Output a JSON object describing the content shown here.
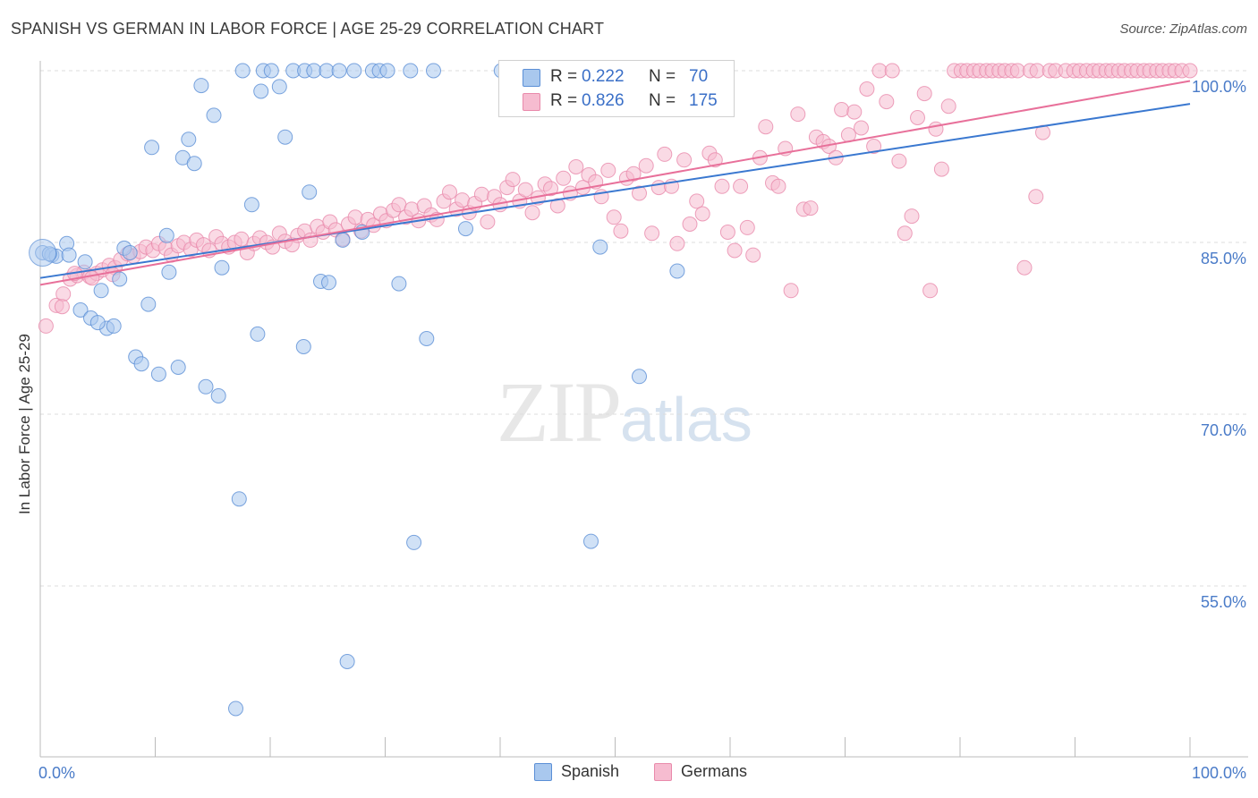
{
  "title": "SPANISH VS GERMAN IN LABOR FORCE | AGE 25-29 CORRELATION CHART",
  "source": "Source: ZipAtlas.com",
  "watermark": {
    "zip": "ZIP",
    "atlas": "atlas"
  },
  "legend_box": {
    "rows": [
      {
        "r_label": "R =",
        "r_value": "0.222",
        "n_label": "N =",
        "n_value": "70"
      },
      {
        "r_label": "R =",
        "r_value": "0.826",
        "n_label": "N =",
        "n_value": "175"
      }
    ]
  },
  "colors": {
    "spanish_fill": "#a9c8ee",
    "spanish_stroke": "#5b8fd6",
    "spanish_line": "#3a78d0",
    "german_fill": "#f6bcd0",
    "german_stroke": "#e98aab",
    "german_line": "#e8709a",
    "tick_label": "#4a7bc8",
    "grid": "#dcdcdc"
  },
  "chart_data": {
    "type": "scatter",
    "title": "SPANISH VS GERMAN IN LABOR FORCE | AGE 25-29 CORRELATION CHART",
    "ylabel": "In Labor Force | Age 25-29",
    "xlabel": "",
    "xlim": [
      0,
      100
    ],
    "ylim": [
      40,
      102
    ],
    "x_tick_labels": [
      "0.0%",
      "100.0%"
    ],
    "y_ticks": [
      55,
      70,
      85,
      100
    ],
    "y_tick_labels": [
      "55.0%",
      "70.0%",
      "85.0%",
      "100.0%"
    ],
    "grid": true,
    "legend_position": "top-center",
    "series": [
      {
        "name": "Spanish",
        "R": 0.222,
        "N": 70,
        "trend": {
          "x": [
            0,
            100
          ],
          "y": [
            81.9,
            97.1
          ]
        },
        "points": [
          [
            0.2,
            84.1
          ],
          [
            1.0,
            83.9
          ],
          [
            1.4,
            83.8
          ],
          [
            2.3,
            84.9
          ],
          [
            3.5,
            79.1
          ],
          [
            3.9,
            83.3
          ],
          [
            4.4,
            78.4
          ],
          [
            5.3,
            80.8
          ],
          [
            5.8,
            77.5
          ],
          [
            6.4,
            77.7
          ],
          [
            6.9,
            81.8
          ],
          [
            7.3,
            84.5
          ],
          [
            7.8,
            84.1
          ],
          [
            8.3,
            75.0
          ],
          [
            8.8,
            74.4
          ],
          [
            9.4,
            79.6
          ],
          [
            9.7,
            93.3
          ],
          [
            10.3,
            73.5
          ],
          [
            11.0,
            85.6
          ],
          [
            11.2,
            82.4
          ],
          [
            12.0,
            74.1
          ],
          [
            12.4,
            92.4
          ],
          [
            12.9,
            94.0
          ],
          [
            13.4,
            91.9
          ],
          [
            14.0,
            98.7
          ],
          [
            14.4,
            72.4
          ],
          [
            15.1,
            96.1
          ],
          [
            15.5,
            71.6
          ],
          [
            15.8,
            82.8
          ],
          [
            17.0,
            44.3
          ],
          [
            17.3,
            62.6
          ],
          [
            17.6,
            100.0
          ],
          [
            18.4,
            88.3
          ],
          [
            18.9,
            77.0
          ],
          [
            19.2,
            98.2
          ],
          [
            19.4,
            100.0
          ],
          [
            20.1,
            100.0
          ],
          [
            20.8,
            98.6
          ],
          [
            21.3,
            94.2
          ],
          [
            22.0,
            100.0
          ],
          [
            22.9,
            75.9
          ],
          [
            23.0,
            100.0
          ],
          [
            23.4,
            89.4
          ],
          [
            23.8,
            100.0
          ],
          [
            24.4,
            81.6
          ],
          [
            25.1,
            81.5
          ],
          [
            24.9,
            100.0
          ],
          [
            26.0,
            100.0
          ],
          [
            26.3,
            85.2
          ],
          [
            26.7,
            48.4
          ],
          [
            27.3,
            100.0
          ],
          [
            28.0,
            85.9
          ],
          [
            28.9,
            100.0
          ],
          [
            29.5,
            100.0
          ],
          [
            30.2,
            100.0
          ],
          [
            31.2,
            81.4
          ],
          [
            32.2,
            100.0
          ],
          [
            32.5,
            58.8
          ],
          [
            33.6,
            76.6
          ],
          [
            34.2,
            100.0
          ],
          [
            37.0,
            86.2
          ],
          [
            40.1,
            100.0
          ],
          [
            46.8,
            100.0
          ],
          [
            52.1,
            73.3
          ],
          [
            47.9,
            58.9
          ],
          [
            48.7,
            84.6
          ],
          [
            55.4,
            82.5
          ],
          [
            0.8,
            84.0
          ],
          [
            5.0,
            78.0
          ],
          [
            2.5,
            83.9
          ]
        ]
      },
      {
        "name": "Germans",
        "R": 0.826,
        "N": 175,
        "trend": {
          "x": [
            0,
            100
          ],
          "y": [
            81.3,
            99.1
          ]
        },
        "points": [
          [
            0.5,
            77.7
          ],
          [
            1.4,
            79.5
          ],
          [
            2.0,
            80.5
          ],
          [
            2.6,
            81.8
          ],
          [
            3.2,
            82.1
          ],
          [
            3.8,
            82.4
          ],
          [
            4.3,
            82.0
          ],
          [
            4.9,
            82.3
          ],
          [
            5.4,
            82.6
          ],
          [
            6.0,
            83.0
          ],
          [
            6.5,
            82.8
          ],
          [
            7.0,
            83.5
          ],
          [
            7.6,
            84.0
          ],
          [
            8.1,
            83.8
          ],
          [
            8.7,
            84.2
          ],
          [
            9.2,
            84.6
          ],
          [
            9.8,
            84.3
          ],
          [
            10.3,
            84.9
          ],
          [
            10.9,
            84.5
          ],
          [
            11.4,
            83.9
          ],
          [
            12.0,
            84.7
          ],
          [
            12.5,
            85.0
          ],
          [
            13.1,
            84.4
          ],
          [
            13.6,
            85.2
          ],
          [
            14.2,
            84.8
          ],
          [
            14.7,
            84.3
          ],
          [
            15.3,
            85.5
          ],
          [
            15.8,
            84.9
          ],
          [
            16.4,
            84.6
          ],
          [
            16.9,
            85.0
          ],
          [
            17.5,
            85.3
          ],
          [
            18.0,
            84.1
          ],
          [
            18.6,
            84.9
          ],
          [
            19.1,
            85.4
          ],
          [
            19.7,
            85.0
          ],
          [
            20.2,
            84.6
          ],
          [
            20.8,
            85.8
          ],
          [
            21.3,
            85.1
          ],
          [
            21.9,
            84.8
          ],
          [
            22.4,
            85.6
          ],
          [
            23.0,
            86.0
          ],
          [
            23.5,
            85.2
          ],
          [
            24.1,
            86.4
          ],
          [
            24.6,
            85.9
          ],
          [
            25.2,
            86.8
          ],
          [
            25.7,
            86.1
          ],
          [
            26.3,
            85.3
          ],
          [
            26.8,
            86.6
          ],
          [
            27.4,
            87.2
          ],
          [
            27.9,
            86.0
          ],
          [
            28.5,
            87.0
          ],
          [
            29.0,
            86.5
          ],
          [
            29.6,
            87.5
          ],
          [
            30.1,
            86.9
          ],
          [
            30.7,
            87.8
          ],
          [
            31.2,
            88.3
          ],
          [
            31.8,
            87.2
          ],
          [
            32.3,
            87.9
          ],
          [
            32.9,
            86.9
          ],
          [
            33.4,
            88.2
          ],
          [
            34.0,
            87.4
          ],
          [
            34.5,
            87.0
          ],
          [
            35.1,
            88.6
          ],
          [
            35.6,
            89.4
          ],
          [
            36.2,
            87.9
          ],
          [
            36.7,
            88.7
          ],
          [
            37.3,
            87.6
          ],
          [
            37.8,
            88.4
          ],
          [
            38.4,
            89.2
          ],
          [
            38.9,
            86.8
          ],
          [
            39.5,
            89.0
          ],
          [
            40.0,
            88.3
          ],
          [
            40.6,
            89.8
          ],
          [
            41.1,
            90.5
          ],
          [
            41.7,
            88.6
          ],
          [
            42.2,
            89.6
          ],
          [
            42.8,
            87.6
          ],
          [
            43.3,
            88.9
          ],
          [
            43.9,
            90.1
          ],
          [
            44.4,
            89.7
          ],
          [
            45.0,
            88.2
          ],
          [
            45.5,
            90.6
          ],
          [
            46.1,
            89.3
          ],
          [
            46.6,
            91.6
          ],
          [
            47.2,
            89.8
          ],
          [
            47.7,
            90.9
          ],
          [
            48.3,
            90.3
          ],
          [
            48.8,
            89.0
          ],
          [
            49.4,
            91.3
          ],
          [
            49.9,
            87.2
          ],
          [
            50.5,
            86.0
          ],
          [
            51.0,
            90.6
          ],
          [
            51.6,
            91.0
          ],
          [
            52.1,
            89.3
          ],
          [
            52.7,
            91.7
          ],
          [
            53.2,
            85.8
          ],
          [
            53.8,
            89.8
          ],
          [
            54.3,
            92.7
          ],
          [
            54.9,
            89.9
          ],
          [
            55.4,
            84.9
          ],
          [
            56.0,
            92.2
          ],
          [
            56.5,
            86.6
          ],
          [
            57.1,
            88.6
          ],
          [
            57.6,
            87.5
          ],
          [
            58.2,
            92.8
          ],
          [
            58.7,
            92.2
          ],
          [
            59.3,
            89.9
          ],
          [
            59.8,
            85.9
          ],
          [
            60.4,
            84.3
          ],
          [
            60.9,
            89.9
          ],
          [
            61.5,
            86.3
          ],
          [
            62.0,
            83.9
          ],
          [
            62.6,
            92.4
          ],
          [
            63.1,
            95.1
          ],
          [
            63.7,
            90.2
          ],
          [
            64.2,
            89.9
          ],
          [
            64.8,
            93.2
          ],
          [
            65.3,
            80.8
          ],
          [
            65.9,
            96.2
          ],
          [
            66.4,
            87.9
          ],
          [
            67.0,
            88.0
          ],
          [
            67.5,
            94.2
          ],
          [
            68.1,
            93.8
          ],
          [
            68.6,
            93.4
          ],
          [
            69.2,
            92.4
          ],
          [
            69.7,
            96.6
          ],
          [
            70.3,
            94.4
          ],
          [
            70.8,
            96.4
          ],
          [
            71.4,
            95.0
          ],
          [
            71.9,
            98.4
          ],
          [
            72.5,
            93.4
          ],
          [
            73.0,
            100.0
          ],
          [
            73.6,
            97.3
          ],
          [
            74.1,
            100.0
          ],
          [
            74.7,
            92.1
          ],
          [
            75.2,
            85.8
          ],
          [
            75.8,
            87.3
          ],
          [
            76.3,
            95.9
          ],
          [
            76.9,
            98.0
          ],
          [
            77.4,
            80.8
          ],
          [
            77.9,
            94.9
          ],
          [
            78.4,
            91.4
          ],
          [
            79.0,
            96.9
          ],
          [
            79.5,
            100.0
          ],
          [
            80.1,
            100.0
          ],
          [
            80.6,
            100.0
          ],
          [
            81.2,
            100.0
          ],
          [
            81.7,
            100.0
          ],
          [
            82.3,
            100.0
          ],
          [
            82.8,
            100.0
          ],
          [
            83.4,
            100.0
          ],
          [
            83.9,
            100.0
          ],
          [
            84.5,
            100.0
          ],
          [
            85.0,
            100.0
          ],
          [
            85.6,
            82.8
          ],
          [
            86.1,
            100.0
          ],
          [
            86.7,
            100.0
          ],
          [
            87.2,
            94.6
          ],
          [
            87.8,
            100.0
          ],
          [
            88.3,
            100.0
          ],
          [
            89.2,
            100.0
          ],
          [
            89.9,
            100.0
          ],
          [
            90.4,
            100.0
          ],
          [
            91.0,
            100.0
          ],
          [
            91.6,
            100.0
          ],
          [
            92.1,
            100.0
          ],
          [
            92.7,
            100.0
          ],
          [
            93.2,
            100.0
          ],
          [
            93.8,
            100.0
          ],
          [
            94.3,
            100.0
          ],
          [
            94.9,
            100.0
          ],
          [
            95.4,
            100.0
          ],
          [
            96.0,
            100.0
          ],
          [
            96.5,
            100.0
          ],
          [
            97.1,
            100.0
          ],
          [
            97.6,
            100.0
          ],
          [
            98.2,
            100.0
          ],
          [
            98.7,
            100.0
          ],
          [
            99.3,
            100.0
          ],
          [
            100.0,
            100.0
          ],
          [
            86.6,
            89.0
          ],
          [
            1.9,
            79.4
          ],
          [
            3.0,
            82.3
          ],
          [
            4.5,
            81.9
          ],
          [
            6.3,
            82.2
          ]
        ]
      }
    ]
  },
  "bottom_legend": [
    {
      "label": "Spanish"
    },
    {
      "label": "Germans"
    }
  ]
}
